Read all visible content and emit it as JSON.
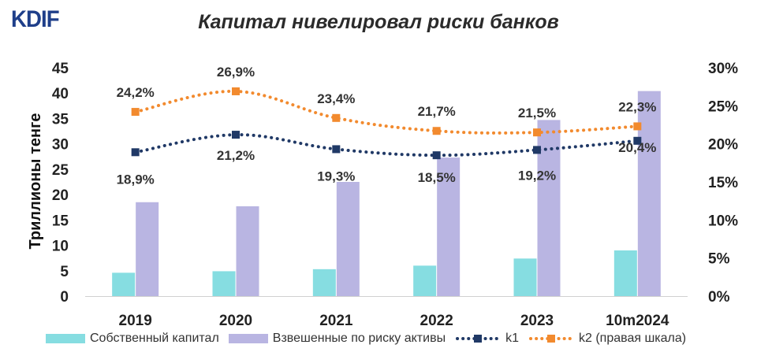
{
  "header": {
    "logo_text": "KDIF",
    "title": "Капитал нивелировал риски банков"
  },
  "colors": {
    "equity": "#86dde1",
    "rwa": "#b9b5e2",
    "k1": "#203966",
    "k2": "#f28a2e",
    "logo": "#1f3f8a"
  },
  "chart_data": {
    "type": "bar",
    "title": "Капитал нивелировал риски банков",
    "categories": [
      "2019",
      "2020",
      "2021",
      "2022",
      "2023",
      "10m2024"
    ],
    "ylabel": "Триллионы тенге",
    "ylim": [
      0,
      45
    ],
    "y_ticks": [
      "0",
      "5",
      "10",
      "15",
      "20",
      "25",
      "30",
      "35",
      "40",
      "45"
    ],
    "y2lim": [
      0,
      30
    ],
    "y2_ticks": [
      "0%",
      "5%",
      "10%",
      "15%",
      "20%",
      "25%",
      "30%"
    ],
    "grid": false,
    "legend_position": "bottom",
    "series": [
      {
        "name": "Собственный капитал",
        "type": "bar",
        "axis": "left",
        "values": [
          4.6,
          4.9,
          5.3,
          6.0,
          7.4,
          9.0
        ]
      },
      {
        "name": "Взвешенные по риску активы",
        "type": "bar",
        "axis": "left",
        "values": [
          18.5,
          17.7,
          22.5,
          27.3,
          34.7,
          40.4
        ]
      },
      {
        "name": "k1",
        "type": "line",
        "axis": "right",
        "values": [
          18.9,
          21.2,
          19.3,
          18.5,
          19.2,
          20.4
        ],
        "labels": [
          "18,9%",
          "21,2%",
          "19,3%",
          "18,5%",
          "19,2%",
          "20,4%"
        ]
      },
      {
        "name": "k2 (правая шкала)",
        "type": "line",
        "axis": "right",
        "values": [
          24.2,
          26.9,
          23.4,
          21.7,
          21.5,
          22.3
        ],
        "labels": [
          "24,2%",
          "26,9%",
          "23,4%",
          "21,7%",
          "21,5%",
          "22,3%"
        ]
      }
    ]
  }
}
